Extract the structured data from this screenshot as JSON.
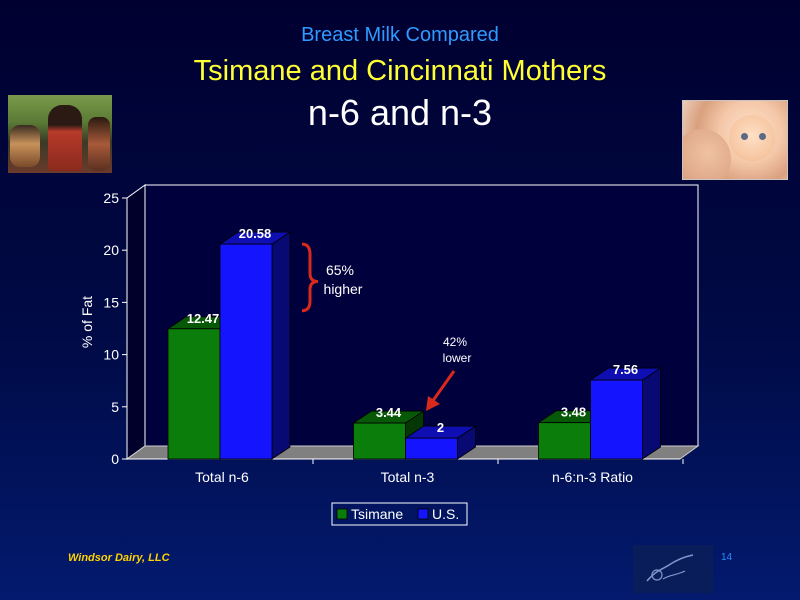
{
  "slide": {
    "title_line1": "Breast Milk Compared",
    "title_line2": "Tsimane and Cincinnati Mothers",
    "title_line3": "n-6 and n-3",
    "footer": "Windsor Dairy, LLC",
    "page_number": "14"
  },
  "colors": {
    "tsimane": "#0a7d0a",
    "us": "#1414ff",
    "annotation_red": "#d9291c",
    "plot_bg": "#00003c"
  },
  "chart_data": {
    "type": "bar",
    "categories": [
      "Total n-6",
      "Total n-3",
      "n-6:n-3 Ratio"
    ],
    "series": [
      {
        "name": "Tsimane",
        "values": [
          12.47,
          3.44,
          3.48
        ],
        "labels": [
          "12.47",
          "3.44",
          "3.48"
        ]
      },
      {
        "name": "U.S.",
        "values": [
          20.58,
          2,
          7.56
        ],
        "labels": [
          "20.58",
          "2",
          "7.56"
        ]
      }
    ],
    "ylabel": "% of Fat",
    "ylim": [
      0,
      25
    ],
    "yticks": [
      "0",
      "5",
      "10",
      "15",
      "20",
      "25"
    ],
    "grid": false,
    "legend_position": "bottom",
    "style": "3d-clustered-bar",
    "annotations": [
      {
        "text_line1": "65%",
        "text_line2": "higher",
        "type": "brace",
        "category": "Total n-6"
      },
      {
        "text_line1": "42%",
        "text_line2": "lower",
        "type": "arrow",
        "category": "Total n-3"
      }
    ]
  }
}
